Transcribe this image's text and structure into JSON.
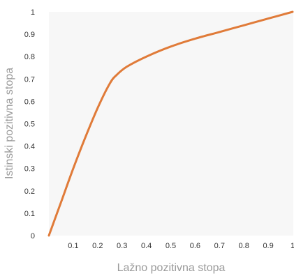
{
  "chart_data": {
    "type": "line",
    "title": "",
    "xlabel": "Lažno pozitivna stopa",
    "ylabel": "Istinski pozitivna stopa",
    "xlim": [
      0,
      1
    ],
    "ylim": [
      0,
      1
    ],
    "grid": false,
    "x_ticks": [
      "0.1",
      "0.2",
      "0.3",
      "0.4",
      "0.5",
      "0.6",
      "0.7",
      "0.8",
      "0.9",
      "1"
    ],
    "y_ticks": [
      "0",
      "0.1",
      "0.2",
      "0.3",
      "0.4",
      "0.5",
      "0.6",
      "0.7",
      "0.8",
      "0.9",
      "1"
    ],
    "series": [
      {
        "color": "#e07b39",
        "x": [
          0,
          0.05,
          0.1,
          0.15,
          0.2,
          0.25,
          0.28,
          0.32,
          0.4,
          0.5,
          0.6,
          0.7,
          0.8,
          0.9,
          1.0
        ],
        "y": [
          0,
          0.15,
          0.3,
          0.44,
          0.57,
          0.68,
          0.72,
          0.755,
          0.8,
          0.845,
          0.88,
          0.91,
          0.94,
          0.97,
          1.0
        ]
      }
    ]
  },
  "colors": {
    "plot_background": "#f7f7f7",
    "line": "#e07b39",
    "tick_text": "#333333",
    "axis_label": "#9a9a9a"
  }
}
